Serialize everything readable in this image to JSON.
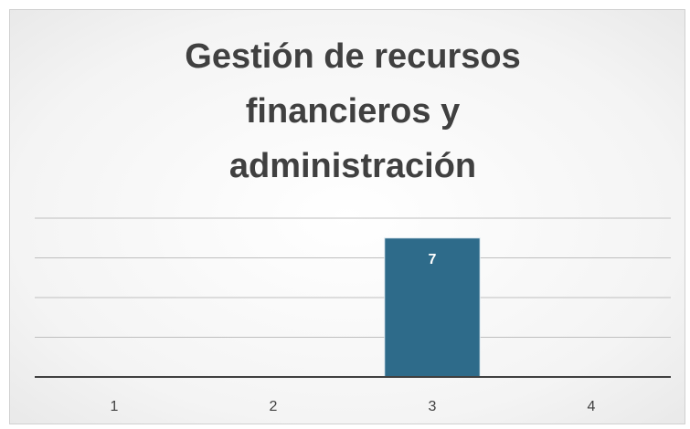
{
  "chart_data": {
    "type": "bar",
    "title": "Gestión de recursos financieros y administración",
    "categories": [
      "1",
      "2",
      "3",
      "4"
    ],
    "values": [
      null,
      null,
      7,
      null
    ],
    "color": "#2e6b8a",
    "ylim": [
      0,
      8
    ],
    "yticks": [
      0,
      2,
      4,
      6,
      8
    ],
    "grid": true
  }
}
